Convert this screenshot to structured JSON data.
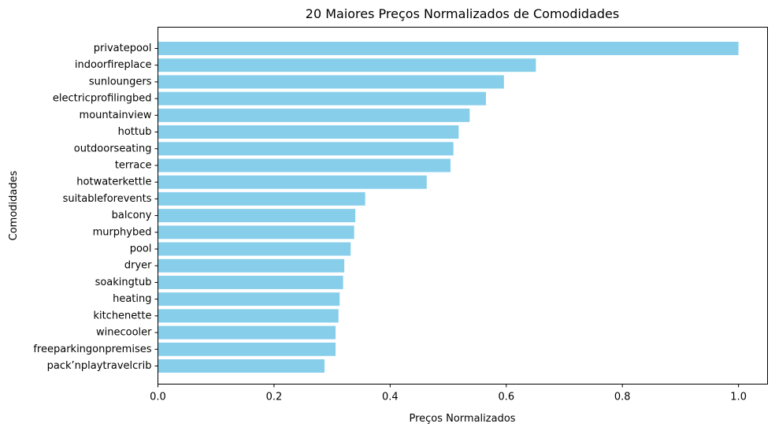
{
  "chart_data": {
    "type": "bar",
    "orientation": "horizontal",
    "title": "20 Maiores Preços Normalizados de Comodidades",
    "xlabel": "Preços Normalizados",
    "ylabel": "Comodidades",
    "xlim": [
      0,
      1.05
    ],
    "x_ticks": [
      "0.0",
      "0.2",
      "0.4",
      "0.6",
      "0.8",
      "1.0"
    ],
    "grid": false,
    "bar_color": "#87CEEB",
    "categories": [
      "privatepool",
      "indoorfireplace",
      "sunloungers",
      "electricprofilingbed",
      "mountainview",
      "hottub",
      "outdoorseating",
      "terrace",
      "hotwaterkettle",
      "suitableforevents",
      "balcony",
      "murphybed",
      "pool",
      "dryer",
      "soakingtub",
      "heating",
      "kitchenette",
      "winecooler",
      "freeparkingonpremises",
      "pack’nplaytravelcrib"
    ],
    "values": [
      1.0,
      0.651,
      0.596,
      0.565,
      0.537,
      0.518,
      0.509,
      0.504,
      0.463,
      0.357,
      0.34,
      0.338,
      0.332,
      0.321,
      0.319,
      0.313,
      0.311,
      0.306,
      0.306,
      0.287
    ]
  }
}
